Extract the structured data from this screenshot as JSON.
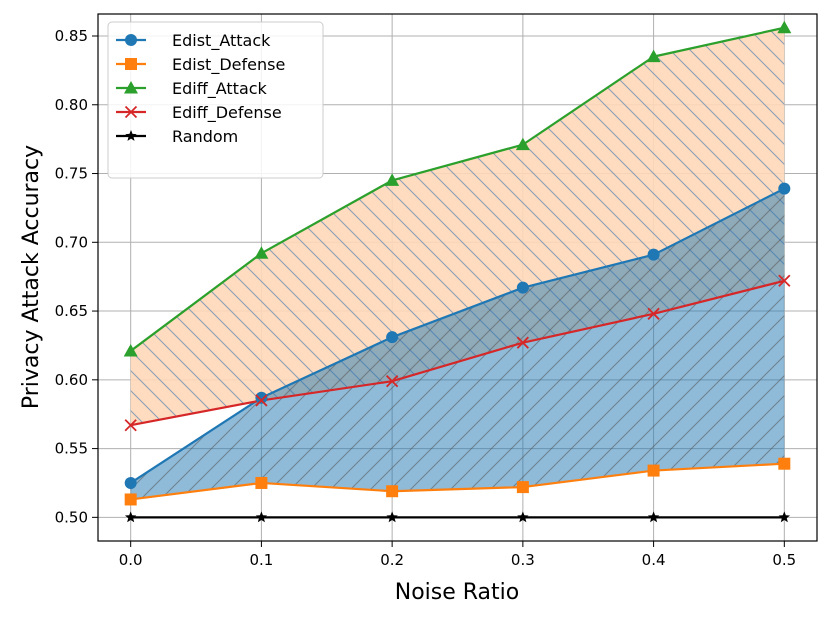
{
  "chart_data": {
    "type": "line",
    "title": "",
    "xlabel": "Noise Ratio",
    "ylabel": "Privacy Attack Accuracy",
    "x": [
      0.0,
      0.1,
      0.2,
      0.3,
      0.4,
      0.5
    ],
    "xticks": [
      "0.0",
      "0.1",
      "0.2",
      "0.3",
      "0.4",
      "0.5"
    ],
    "yticks": [
      "0.50",
      "0.55",
      "0.60",
      "0.65",
      "0.70",
      "0.75",
      "0.80",
      "0.85"
    ],
    "xlim": [
      -0.025,
      0.525
    ],
    "ylim": [
      0.4828,
      0.866
    ],
    "grid": true,
    "legend_position": "top-left",
    "series": [
      {
        "name": "Edist_Attack",
        "color": "#1f77b4",
        "marker": "circle",
        "values": [
          0.525,
          0.587,
          0.631,
          0.667,
          0.691,
          0.739
        ]
      },
      {
        "name": "Edist_Defense",
        "color": "#ff7f0e",
        "marker": "square",
        "values": [
          0.513,
          0.525,
          0.519,
          0.522,
          0.534,
          0.539
        ]
      },
      {
        "name": "Ediff_Attack",
        "color": "#2ca02c",
        "marker": "triangle",
        "values": [
          0.621,
          0.692,
          0.745,
          0.771,
          0.835,
          0.856
        ]
      },
      {
        "name": "Ediff_Defense",
        "color": "#d62728",
        "marker": "x",
        "values": [
          0.567,
          0.585,
          0.599,
          0.627,
          0.648,
          0.672
        ]
      },
      {
        "name": "Random",
        "color": "#000000",
        "marker": "star",
        "values": [
          0.5,
          0.5,
          0.5,
          0.5,
          0.5,
          0.5
        ]
      }
    ],
    "fills": [
      {
        "between": [
          "Ediff_Attack",
          "Ediff_Defense"
        ],
        "color": "#ffd8b8",
        "hatch": "backslash"
      },
      {
        "between": [
          "Edist_Attack",
          "Edist_Defense"
        ],
        "color": "#1f77b4",
        "hatch": "slash"
      }
    ]
  }
}
